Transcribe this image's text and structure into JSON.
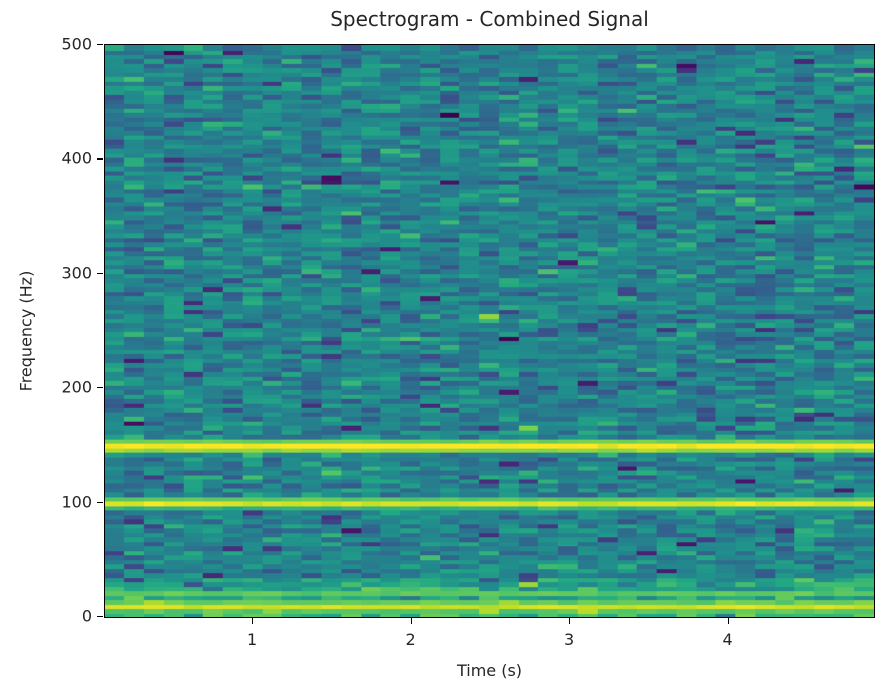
{
  "chart_data": {
    "type": "heatmap",
    "subtype": "spectrogram",
    "title": "Spectrogram - Combined Signal",
    "xlabel": "Time (s)",
    "ylabel": "Frequency (Hz)",
    "xlim": [
      0.066,
      4.93
    ],
    "ylim": [
      0,
      500
    ],
    "xticks": [
      1,
      2,
      3,
      4
    ],
    "xtick_labels": [
      "1",
      "2",
      "3",
      "4"
    ],
    "yticks": [
      0,
      100,
      200,
      300,
      400,
      500
    ],
    "ytick_labels": [
      "0",
      "100",
      "200",
      "300",
      "400",
      "500"
    ],
    "colormap": "viridis",
    "grid": false,
    "legend": null,
    "time_bins": 39,
    "frequency_bins": 128,
    "frequency_resolution_hz": 3.9,
    "background_level": 0.45,
    "background_noise_spread": 0.09,
    "tonal_components": [
      {
        "frequency_hz": 10,
        "width_hz": 6,
        "level": 0.93,
        "description": "broad low-frequency band"
      },
      {
        "frequency_hz": 20,
        "width_hz": 2,
        "level": 0.98,
        "description": "narrow line"
      },
      {
        "frequency_hz": 100,
        "width_hz": 5,
        "level": 0.95,
        "description": "strong tone"
      },
      {
        "frequency_hz": 150,
        "width_hz": 6,
        "level": 1.0,
        "description": "strongest tone"
      }
    ],
    "low_frequency_rise": {
      "below_hz": 35,
      "level": 0.68
    },
    "notes": "Background is noisy teal/blue (viridis mid range) with scattered dark-purple low-power cells; three bright yellow horizontal bands near ~10-20 Hz, 100 Hz and 150 Hz persist across the full time span."
  },
  "figure": {
    "title": "Spectrogram - Combined Signal",
    "xlabel": "Time (s)",
    "ylabel": "Frequency (Hz)"
  }
}
